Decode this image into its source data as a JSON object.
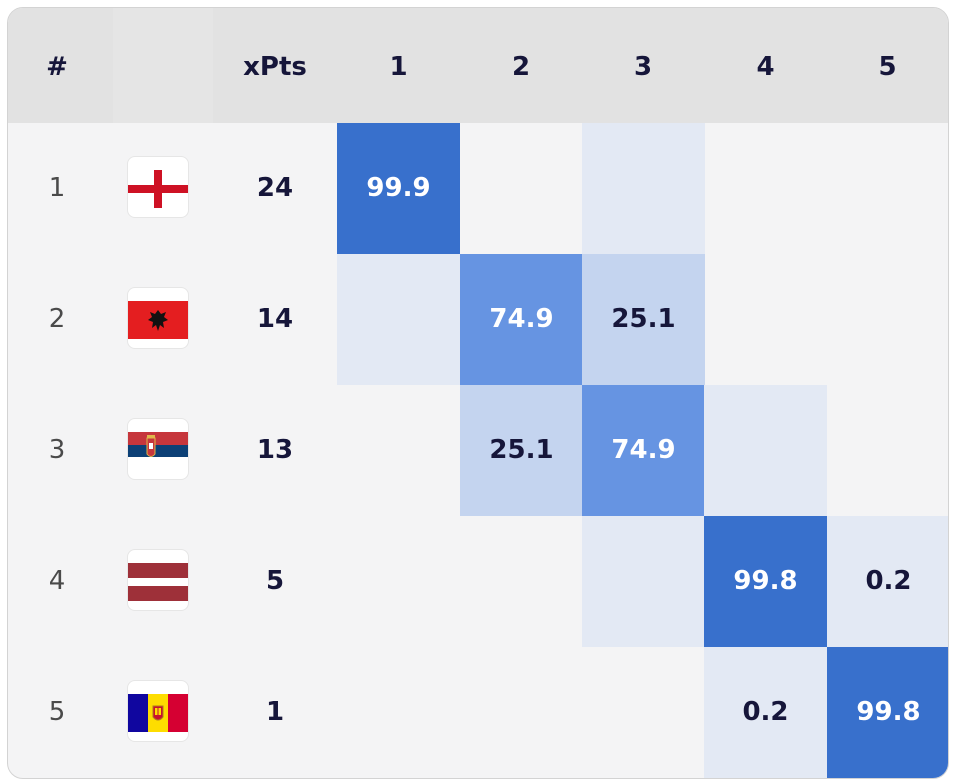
{
  "header": {
    "rank_label": "#",
    "xpts_label": "xPts",
    "positions": [
      "1",
      "2",
      "3",
      "4",
      "5"
    ]
  },
  "rows": [
    {
      "rank": "1",
      "flag_icon": "england-flag-icon",
      "xpts": "24",
      "cells": [
        "99.9",
        "",
        "",
        "",
        ""
      ],
      "levels": [
        4,
        0,
        1,
        0,
        0
      ]
    },
    {
      "rank": "2",
      "flag_icon": "albania-flag-icon",
      "xpts": "14",
      "cells": [
        "",
        "74.9",
        "25.1",
        "",
        ""
      ],
      "levels": [
        1,
        3,
        2,
        0,
        0
      ]
    },
    {
      "rank": "3",
      "flag_icon": "serbia-flag-icon",
      "xpts": "13",
      "cells": [
        "",
        "25.1",
        "74.9",
        "",
        ""
      ],
      "levels": [
        0,
        2,
        3,
        1,
        0
      ]
    },
    {
      "rank": "4",
      "flag_icon": "latvia-flag-icon",
      "xpts": "5",
      "cells": [
        "",
        "",
        "",
        "99.8",
        "0.2"
      ],
      "levels": [
        0,
        0,
        1,
        4,
        1
      ]
    },
    {
      "rank": "5",
      "flag_icon": "andorra-flag-icon",
      "xpts": "1",
      "cells": [
        "",
        "",
        "",
        "0.2",
        "99.8"
      ],
      "levels": [
        0,
        0,
        0,
        1,
        4
      ]
    }
  ],
  "colors": {
    "heat_low": "#e3e9f4",
    "heat_mid": "#c4d4ef",
    "heat_high": "#6694e2",
    "heat_max": "#3870cc"
  }
}
